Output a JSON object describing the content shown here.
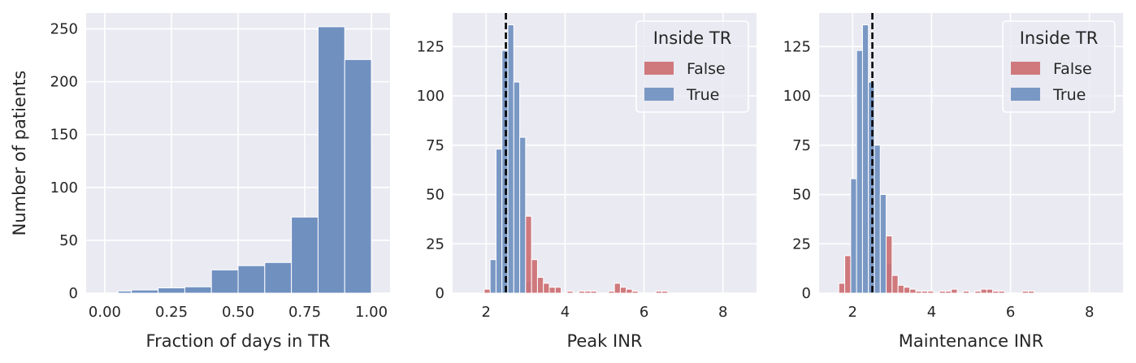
{
  "chart_data": [
    {
      "type": "bar",
      "xlabel": "Fraction of days in TR",
      "ylabel": "Number of patients",
      "xlim": [
        -0.07,
        1.07
      ],
      "ylim": [
        0,
        265
      ],
      "xticks": [
        0.0,
        0.25,
        0.5,
        0.75,
        1.0
      ],
      "xtick_labels": [
        "0.00",
        "0.25",
        "0.50",
        "0.75",
        "1.00"
      ],
      "yticks": [
        0,
        50,
        100,
        150,
        200,
        250
      ],
      "ytick_labels": [
        "0",
        "50",
        "100",
        "150",
        "200",
        "250"
      ],
      "grid": true,
      "color": "#7090c0",
      "bins": [
        {
          "x0": 0.05,
          "x1": 0.1,
          "value": 2
        },
        {
          "x0": 0.1,
          "x1": 0.2,
          "value": 3
        },
        {
          "x0": 0.2,
          "x1": 0.3,
          "value": 5
        },
        {
          "x0": 0.3,
          "x1": 0.4,
          "value": 6
        },
        {
          "x0": 0.4,
          "x1": 0.5,
          "value": 22
        },
        {
          "x0": 0.5,
          "x1": 0.6,
          "value": 26
        },
        {
          "x0": 0.6,
          "x1": 0.7,
          "value": 29
        },
        {
          "x0": 0.7,
          "x1": 0.8,
          "value": 72
        },
        {
          "x0": 0.8,
          "x1": 0.9,
          "value": 252
        },
        {
          "x0": 0.9,
          "x1": 1.0,
          "value": 221
        }
      ]
    },
    {
      "type": "bar",
      "xlabel": "Peak INR",
      "ylabel": "",
      "xlim": [
        1.15,
        8.85
      ],
      "ylim": [
        0,
        142
      ],
      "xticks": [
        2,
        4,
        6,
        8
      ],
      "xtick_labels": [
        "2",
        "4",
        "6",
        "8"
      ],
      "yticks": [
        0,
        25,
        50,
        75,
        100,
        125
      ],
      "ytick_labels": [
        "0",
        "25",
        "50",
        "75",
        "100",
        "125"
      ],
      "grid": true,
      "vline": 2.5,
      "legend": {
        "title": "Inside TR",
        "placement": "top-right",
        "entries": [
          "False",
          "True"
        ]
      },
      "series": [
        {
          "name": "True",
          "color": "#7090c0",
          "bins": [
            {
              "x0": 2.1,
              "x1": 2.25,
              "value": 17
            },
            {
              "x0": 2.25,
              "x1": 2.4,
              "value": 73
            },
            {
              "x0": 2.4,
              "x1": 2.55,
              "value": 123
            },
            {
              "x0": 2.55,
              "x1": 2.7,
              "value": 136
            },
            {
              "x0": 2.7,
              "x1": 2.85,
              "value": 107
            },
            {
              "x0": 2.85,
              "x1": 3.0,
              "value": 79
            },
            {
              "x0": 3.0,
              "x1": 3.15,
              "value": 6
            }
          ]
        },
        {
          "name": "False",
          "color": "#cc6f73",
          "bins": [
            {
              "x0": 1.95,
              "x1": 2.1,
              "value": 2
            },
            {
              "x0": 3.0,
              "x1": 3.15,
              "value": 39
            },
            {
              "x0": 3.15,
              "x1": 3.3,
              "value": 17
            },
            {
              "x0": 3.3,
              "x1": 3.45,
              "value": 8
            },
            {
              "x0": 3.45,
              "x1": 3.6,
              "value": 5
            },
            {
              "x0": 3.6,
              "x1": 3.75,
              "value": 3
            },
            {
              "x0": 3.75,
              "x1": 3.9,
              "value": 3
            },
            {
              "x0": 4.05,
              "x1": 4.2,
              "value": 1
            },
            {
              "x0": 4.35,
              "x1": 4.5,
              "value": 1
            },
            {
              "x0": 4.5,
              "x1": 4.65,
              "value": 1
            },
            {
              "x0": 4.65,
              "x1": 4.8,
              "value": 1
            },
            {
              "x0": 5.1,
              "x1": 5.25,
              "value": 1
            },
            {
              "x0": 5.25,
              "x1": 5.4,
              "value": 5
            },
            {
              "x0": 5.4,
              "x1": 5.55,
              "value": 3
            },
            {
              "x0": 5.55,
              "x1": 5.7,
              "value": 2
            },
            {
              "x0": 5.7,
              "x1": 5.85,
              "value": 1
            },
            {
              "x0": 6.3,
              "x1": 6.45,
              "value": 1
            },
            {
              "x0": 6.45,
              "x1": 6.6,
              "value": 1
            }
          ]
        }
      ]
    },
    {
      "type": "bar",
      "xlabel": "Maintenance INR",
      "ylabel": "",
      "xlim": [
        1.15,
        8.85
      ],
      "ylim": [
        0,
        142
      ],
      "xticks": [
        2,
        4,
        6,
        8
      ],
      "xtick_labels": [
        "2",
        "4",
        "6",
        "8"
      ],
      "yticks": [
        0,
        25,
        50,
        75,
        100,
        125
      ],
      "ytick_labels": [
        "0",
        "25",
        "50",
        "75",
        "100",
        "125"
      ],
      "grid": true,
      "vline": 2.5,
      "legend": {
        "title": "Inside TR",
        "placement": "top-right",
        "entries": [
          "False",
          "True"
        ]
      },
      "series": [
        {
          "name": "True",
          "color": "#7090c0",
          "bins": [
            {
              "x0": 1.95,
              "x1": 2.1,
              "value": 58
            },
            {
              "x0": 2.1,
              "x1": 2.25,
              "value": 123
            },
            {
              "x0": 2.25,
              "x1": 2.4,
              "value": 136
            },
            {
              "x0": 2.4,
              "x1": 2.55,
              "value": 107
            },
            {
              "x0": 2.55,
              "x1": 2.7,
              "value": 75
            },
            {
              "x0": 2.7,
              "x1": 2.85,
              "value": 50
            },
            {
              "x0": 2.85,
              "x1": 3.0,
              "value": 15
            }
          ]
        },
        {
          "name": "False",
          "color": "#cc6f73",
          "bins": [
            {
              "x0": 1.65,
              "x1": 1.8,
              "value": 5
            },
            {
              "x0": 1.8,
              "x1": 1.95,
              "value": 19
            },
            {
              "x0": 2.85,
              "x1": 3.0,
              "value": 29
            },
            {
              "x0": 3.0,
              "x1": 3.15,
              "value": 9
            },
            {
              "x0": 3.15,
              "x1": 3.3,
              "value": 4
            },
            {
              "x0": 3.3,
              "x1": 3.45,
              "value": 3
            },
            {
              "x0": 3.45,
              "x1": 3.6,
              "value": 2
            },
            {
              "x0": 3.6,
              "x1": 3.75,
              "value": 1
            },
            {
              "x0": 3.75,
              "x1": 3.9,
              "value": 1
            },
            {
              "x0": 3.9,
              "x1": 4.05,
              "value": 1
            },
            {
              "x0": 4.2,
              "x1": 4.35,
              "value": 1
            },
            {
              "x0": 4.35,
              "x1": 4.5,
              "value": 1
            },
            {
              "x0": 4.5,
              "x1": 4.65,
              "value": 2
            },
            {
              "x0": 4.8,
              "x1": 4.95,
              "value": 1
            },
            {
              "x0": 5.1,
              "x1": 5.25,
              "value": 1
            },
            {
              "x0": 5.25,
              "x1": 5.4,
              "value": 2
            },
            {
              "x0": 5.4,
              "x1": 5.55,
              "value": 2
            },
            {
              "x0": 5.55,
              "x1": 5.7,
              "value": 1
            },
            {
              "x0": 5.7,
              "x1": 5.85,
              "value": 1
            },
            {
              "x0": 6.3,
              "x1": 6.45,
              "value": 1
            },
            {
              "x0": 6.45,
              "x1": 6.6,
              "value": 1
            }
          ]
        }
      ]
    }
  ]
}
